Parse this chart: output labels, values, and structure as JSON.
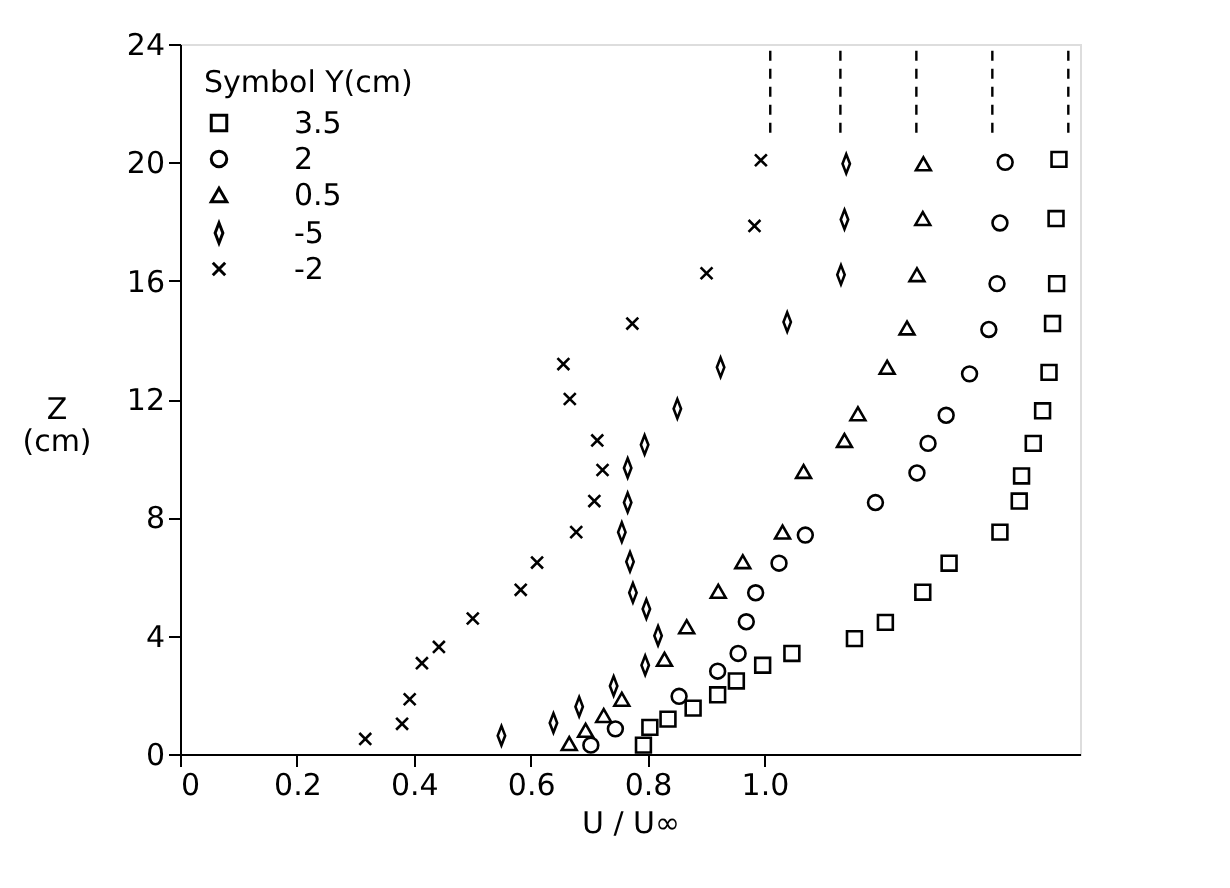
{
  "chart_data": {
    "type": "scatter",
    "xlabel": "U / U∞",
    "ylabel": "Z (cm)",
    "legend_title": "Symbol Y(cm)",
    "legend": "top left",
    "grid": false,
    "xlim": [
      0,
      1.54
    ],
    "ylim": [
      0,
      24
    ],
    "xticks": [
      0,
      0.2,
      0.4,
      0.6,
      0.8,
      {
        "value": 1.0,
        "label": "1.0"
      }
    ],
    "yticks": [
      0,
      4,
      8,
      12,
      16,
      20,
      24
    ],
    "series": [
      {
        "name": "3.5",
        "color": "#000000",
        "marker": "square",
        "x": [
          1.504,
          1.499,
          1.5,
          1.493,
          1.487,
          1.476,
          1.46,
          1.44,
          1.436,
          1.403,
          1.316,
          1.271,
          1.207,
          1.154,
          1.047,
          0.997,
          0.952,
          0.92,
          0.878,
          0.835,
          0.804,
          0.793
        ],
        "values": [
          20.1,
          18.1,
          15.9,
          14.55,
          12.9,
          11.6,
          10.5,
          9.4,
          8.55,
          7.5,
          6.45,
          5.47,
          4.45,
          3.9,
          3.4,
          3.0,
          2.47,
          2.0,
          1.55,
          1.18,
          0.9,
          0.3
        ]
      },
      {
        "name": "2",
        "color": "#000000",
        "marker": "circle",
        "x": [
          1.412,
          1.403,
          1.398,
          1.384,
          1.351,
          1.311,
          1.28,
          1.261,
          1.19,
          1.07,
          1.025,
          0.985,
          0.969,
          0.955,
          0.92,
          0.854,
          0.745,
          0.703
        ],
        "values": [
          20.0,
          17.95,
          15.9,
          14.35,
          12.85,
          11.45,
          10.5,
          9.5,
          8.5,
          7.4,
          6.45,
          5.45,
          4.47,
          3.4,
          2.8,
          1.95,
          0.85,
          0.3
        ]
      },
      {
        "name": "0.5",
        "color": "#000000",
        "marker": "triangle",
        "x": [
          1.272,
          1.271,
          1.261,
          1.244,
          1.21,
          1.16,
          1.137,
          1.067,
          1.031,
          0.963,
          0.921,
          0.867,
          0.829,
          0.756,
          0.725,
          0.694,
          0.666
        ],
        "values": [
          19.95,
          18.1,
          16.2,
          14.4,
          13.07,
          11.5,
          10.6,
          9.55,
          7.5,
          6.5,
          5.5,
          4.3,
          3.2,
          1.85,
          1.3,
          0.8,
          0.35
        ]
      },
      {
        "name": "-5",
        "color": "#000000",
        "marker": "diamond",
        "x": [
          1.14,
          1.137,
          1.131,
          1.039,
          0.925,
          0.851,
          0.795,
          0.766,
          0.766,
          0.756,
          0.77,
          0.775,
          0.798,
          0.818,
          0.796,
          0.742,
          0.683,
          0.639,
          0.55
        ],
        "values": [
          19.95,
          18.07,
          16.2,
          14.6,
          13.07,
          11.67,
          10.45,
          9.67,
          8.5,
          7.5,
          6.5,
          5.45,
          4.9,
          4.0,
          3.0,
          2.3,
          1.6,
          1.05,
          0.62
        ]
      },
      {
        "name": "-2",
        "color": "#000000",
        "marker": "cross",
        "x": [
          0.994,
          0.983,
          0.901,
          0.774,
          0.656,
          0.667,
          0.714,
          0.723,
          0.709,
          0.678,
          0.611,
          0.583,
          0.501,
          0.443,
          0.414,
          0.393,
          0.38,
          0.317
        ],
        "values": [
          20.07,
          17.85,
          16.25,
          14.55,
          13.18,
          12.0,
          10.6,
          9.6,
          8.55,
          7.5,
          6.47,
          5.55,
          4.58,
          3.62,
          3.07,
          1.85,
          1.02,
          0.51
        ]
      },
      {
        "type": "line",
        "line_style": "dashed",
        "color": "#000000",
        "x": [
          1.01,
          1.01
        ],
        "values": [
          21,
          24
        ]
      },
      {
        "type": "line",
        "line_style": "dashed",
        "color": "#000000",
        "x": [
          1.13,
          1.13
        ],
        "values": [
          21,
          24
        ]
      },
      {
        "type": "line",
        "line_style": "dashed",
        "color": "#000000",
        "x": [
          1.26,
          1.26
        ],
        "values": [
          21,
          24
        ]
      },
      {
        "type": "line",
        "line_style": "dashed",
        "color": "#000000",
        "x": [
          1.39,
          1.39
        ],
        "values": [
          21,
          24
        ]
      },
      {
        "type": "line",
        "line_style": "dashed",
        "color": "#000000",
        "x": [
          1.52,
          1.52
        ],
        "values": [
          21,
          24
        ]
      }
    ]
  }
}
